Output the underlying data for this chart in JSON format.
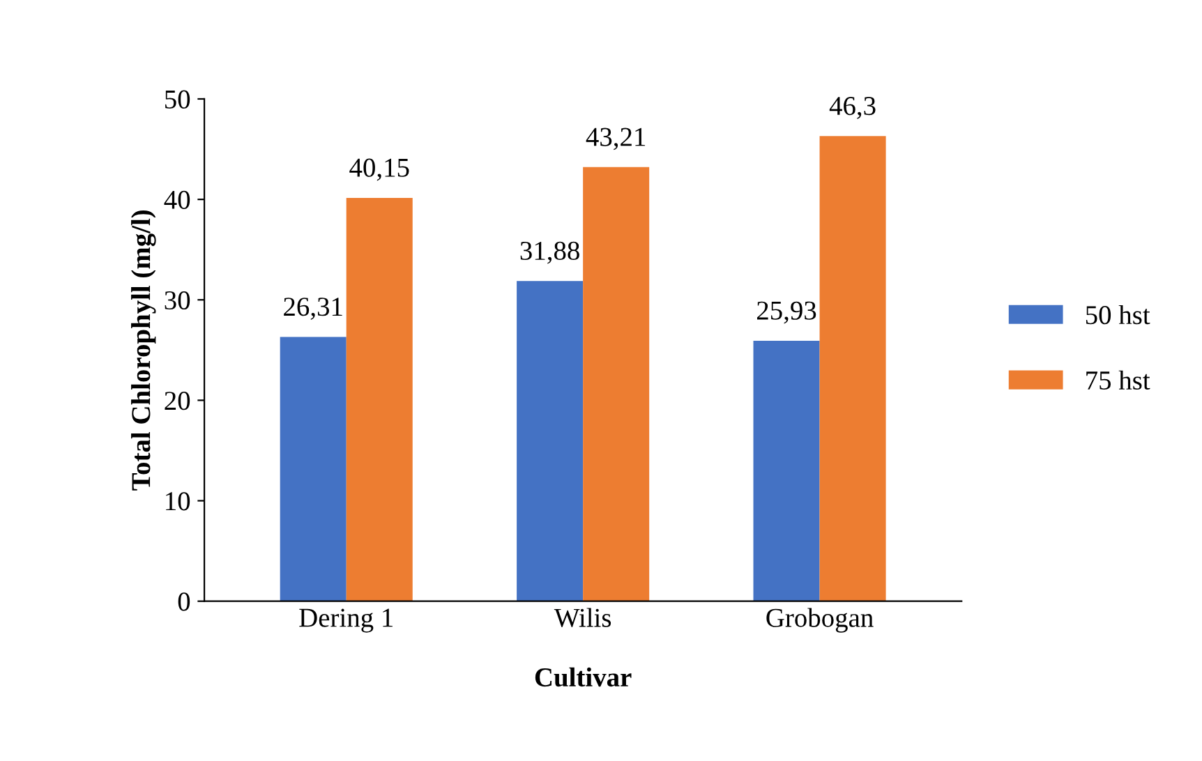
{
  "chart_data": {
    "type": "bar",
    "xlabel": "Cultivar",
    "ylabel": "Total Chlorophyll (mg/l)",
    "categories": [
      "Dering 1",
      "Wilis",
      "Grobogan"
    ],
    "series": [
      {
        "name": "50 hst",
        "color": "#4472c4",
        "values": [
          26.31,
          31.88,
          25.93
        ],
        "value_labels": [
          "26,31",
          "31,88",
          "25,93"
        ]
      },
      {
        "name": "75 hst",
        "color": "#ed7d31",
        "values": [
          40.15,
          43.21,
          46.3
        ],
        "value_labels": [
          "40,15",
          "43,21",
          "46,3"
        ]
      }
    ],
    "ylim": [
      0,
      50
    ],
    "yticks": [
      0,
      10,
      20,
      30,
      40,
      50
    ],
    "grid": false,
    "legend": "right"
  }
}
